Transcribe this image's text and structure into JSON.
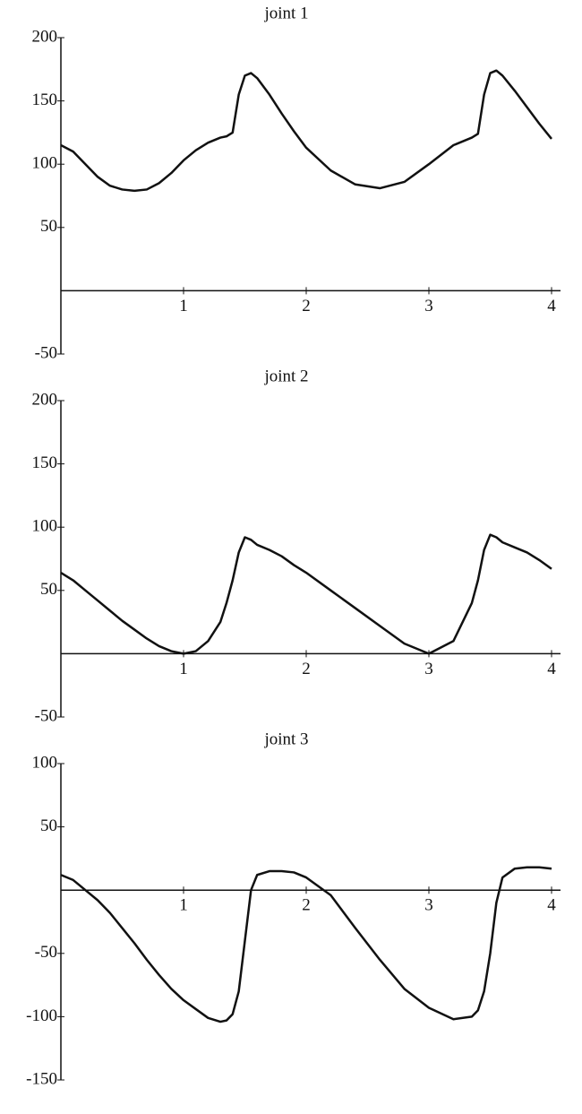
{
  "chart_data": [
    {
      "type": "line",
      "title": "joint 1",
      "x": [
        0,
        0.1,
        0.2,
        0.3,
        0.4,
        0.5,
        0.6,
        0.7,
        0.8,
        0.9,
        1.0,
        1.1,
        1.2,
        1.3,
        1.35,
        1.4,
        1.45,
        1.5,
        1.55,
        1.6,
        1.7,
        1.8,
        1.9,
        2.0,
        2.2,
        2.4,
        2.6,
        2.8,
        3.0,
        3.2,
        3.35,
        3.4,
        3.45,
        3.5,
        3.55,
        3.6,
        3.7,
        3.8,
        3.9,
        4.0
      ],
      "series": [
        {
          "color": "#111111",
          "values": [
            115,
            110,
            100,
            90,
            83,
            80,
            79,
            80,
            85,
            93,
            103,
            111,
            117,
            121,
            122,
            125,
            155,
            170,
            172,
            168,
            155,
            140,
            126,
            113,
            95,
            84,
            81,
            86,
            100,
            115,
            121,
            124,
            155,
            172,
            174,
            170,
            158,
            145,
            132,
            120
          ]
        }
      ],
      "xlim": [
        0,
        4
      ],
      "xticks": [
        1,
        2,
        3,
        4
      ],
      "ylim": [
        -50,
        200
      ],
      "yticks": [
        -50,
        50,
        100,
        150,
        200
      ]
    },
    {
      "type": "line",
      "title": "joint 2",
      "x": [
        0,
        0.1,
        0.2,
        0.3,
        0.4,
        0.5,
        0.6,
        0.7,
        0.8,
        0.9,
        1.0,
        1.1,
        1.2,
        1.3,
        1.35,
        1.4,
        1.45,
        1.5,
        1.55,
        1.6,
        1.7,
        1.8,
        1.9,
        2.0,
        2.2,
        2.4,
        2.6,
        2.8,
        3.0,
        3.2,
        3.35,
        3.4,
        3.45,
        3.5,
        3.55,
        3.6,
        3.7,
        3.8,
        3.9,
        4.0
      ],
      "series": [
        {
          "color": "#111111",
          "values": [
            64,
            58,
            50,
            42,
            34,
            26,
            19,
            12,
            6,
            2,
            0,
            2,
            10,
            25,
            40,
            58,
            80,
            92,
            90,
            86,
            82,
            77,
            70,
            64,
            50,
            36,
            22,
            8,
            0,
            10,
            40,
            58,
            82,
            94,
            92,
            88,
            84,
            80,
            74,
            67
          ]
        }
      ],
      "xlim": [
        0,
        4
      ],
      "xticks": [
        1,
        2,
        3,
        4
      ],
      "ylim": [
        -50,
        200
      ],
      "yticks": [
        -50,
        50,
        100,
        150,
        200
      ]
    },
    {
      "type": "line",
      "title": "joint 3",
      "x": [
        0,
        0.1,
        0.2,
        0.3,
        0.4,
        0.5,
        0.6,
        0.7,
        0.8,
        0.9,
        1.0,
        1.1,
        1.2,
        1.3,
        1.35,
        1.4,
        1.45,
        1.5,
        1.55,
        1.6,
        1.7,
        1.8,
        1.9,
        2.0,
        2.2,
        2.4,
        2.6,
        2.8,
        3.0,
        3.2,
        3.35,
        3.4,
        3.45,
        3.5,
        3.55,
        3.6,
        3.7,
        3.8,
        3.9,
        4.0
      ],
      "series": [
        {
          "color": "#111111",
          "values": [
            12,
            8,
            0,
            -8,
            -18,
            -30,
            -42,
            -55,
            -67,
            -78,
            -87,
            -94,
            -101,
            -104,
            -103,
            -98,
            -80,
            -40,
            0,
            12,
            15,
            15,
            14,
            10,
            -4,
            -30,
            -55,
            -78,
            -93,
            -102,
            -100,
            -95,
            -80,
            -50,
            -10,
            10,
            17,
            18,
            18,
            17
          ]
        }
      ],
      "xlim": [
        0,
        4
      ],
      "xticks": [
        1,
        2,
        3,
        4
      ],
      "ylim": [
        -150,
        100
      ],
      "yticks": [
        -150,
        -100,
        -50,
        50,
        100
      ]
    }
  ]
}
